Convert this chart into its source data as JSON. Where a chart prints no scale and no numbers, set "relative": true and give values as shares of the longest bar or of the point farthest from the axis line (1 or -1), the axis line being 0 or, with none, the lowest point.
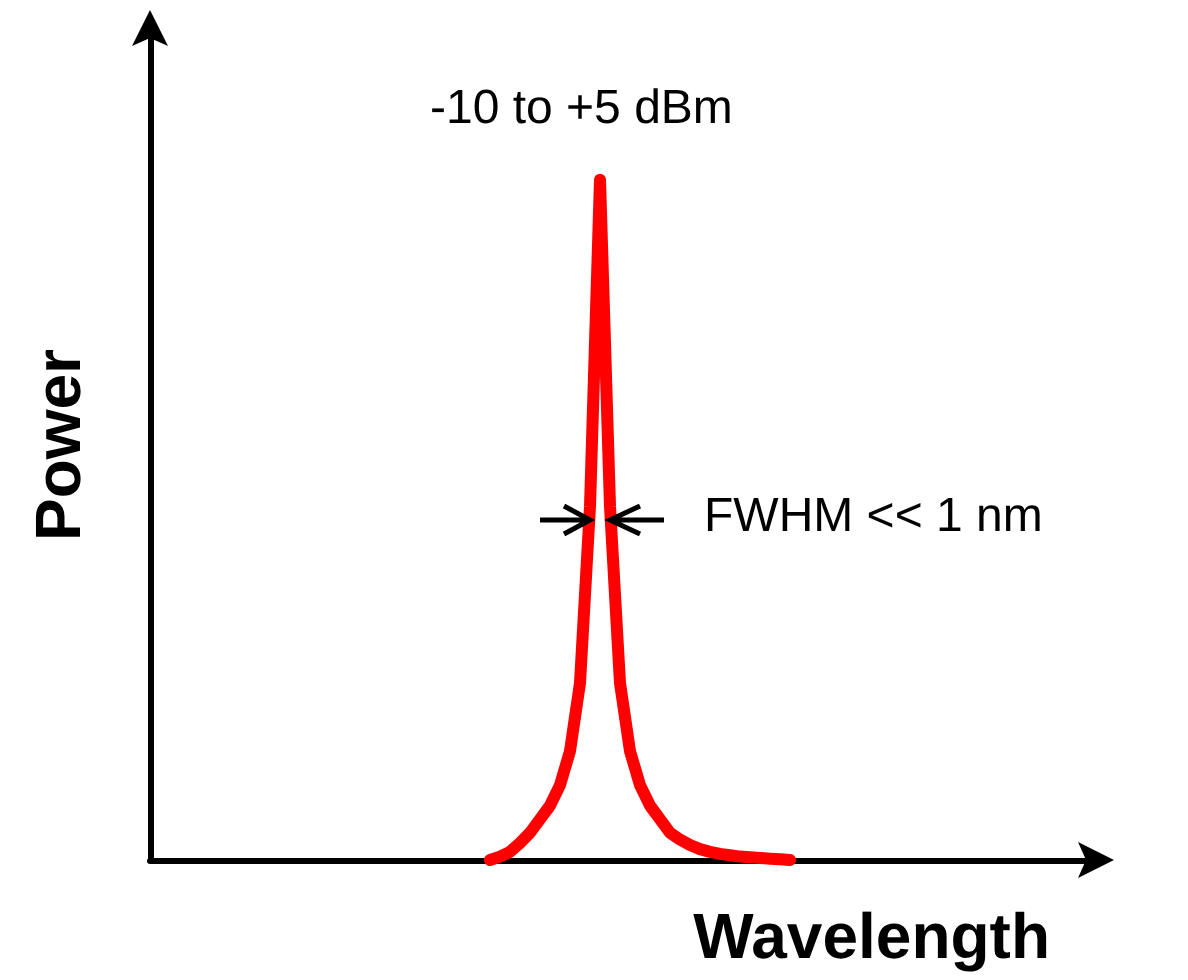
{
  "chart_data": {
    "type": "line",
    "relative": true,
    "xlabel": "Wavelength",
    "ylabel": "Power",
    "categories": [
      null,
      null,
      null,
      null,
      null,
      null,
      null,
      null,
      null,
      null,
      null,
      null,
      null,
      null,
      null,
      null,
      null,
      null,
      null,
      null,
      null,
      null,
      null,
      null,
      null,
      null,
      null,
      null,
      null,
      null,
      null,
      null,
      null,
      null,
      null,
      null,
      null,
      null,
      null,
      null,
      null,
      null,
      null,
      null,
      null,
      null,
      null,
      null,
      null,
      null,
      null,
      null,
      null,
      null,
      null,
      null,
      null,
      null,
      null,
      null,
      null,
      null,
      null,
      null,
      null,
      null,
      null,
      null,
      null,
      null,
      null,
      null,
      null,
      null,
      null,
      null,
      null,
      null,
      null,
      null,
      null,
      null,
      null,
      null,
      null,
      null,
      null,
      null,
      null,
      null,
      null,
      null,
      null,
      null,
      null
    ],
    "series": [
      {
        "color": "#ff0000",
        "values": [
          null,
          null,
          null,
          null,
          null,
          null,
          null,
          null,
          null,
          null,
          null,
          null,
          null,
          null,
          null,
          null,
          null,
          null,
          null,
          null,
          null,
          null,
          null,
          null,
          null,
          null,
          null,
          null,
          null,
          null,
          null,
          null,
          null,
          null,
          0,
          0.005,
          0.012,
          0.025,
          0.04,
          0.06,
          0.08,
          0.11,
          0.16,
          0.26,
          0.52,
          1,
          0.52,
          0.26,
          0.16,
          0.11,
          0.08,
          0.06,
          0.04,
          0.03,
          0.022,
          0.016,
          0.012,
          0.009,
          0.007,
          0.005,
          0.004,
          0.003,
          0.002,
          0.001,
          0,
          null,
          null,
          null,
          null,
          null,
          null,
          null,
          null,
          null,
          null,
          null,
          null,
          null,
          null,
          null,
          null,
          null,
          null,
          null,
          null,
          null,
          null,
          null,
          null,
          null,
          null,
          null,
          null,
          null,
          null
        ]
      }
    ],
    "annotations": [
      "-10 to +5 dBm",
      "FWHM << 1 nm"
    ],
    "grid": false,
    "line_style": "solid"
  }
}
